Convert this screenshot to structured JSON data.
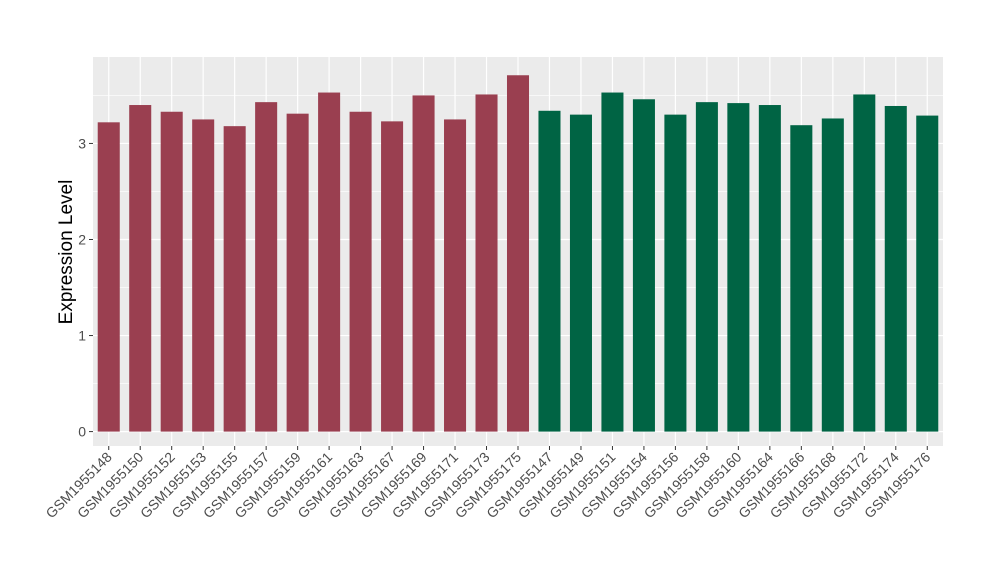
{
  "chart_data": {
    "type": "bar",
    "title": "",
    "xlabel": "",
    "ylabel": "Expression Level",
    "ylim": [
      -0.15,
      3.9
    ],
    "yticks": [
      0,
      1,
      2,
      3
    ],
    "grid": true,
    "legend": "none",
    "colors": {
      "group1": "#9A3F50",
      "group2": "#006444",
      "panel": "#EBEBEB",
      "grid": "#FFFFFF"
    },
    "categories": [
      "GSM1955148",
      "GSM1955150",
      "GSM1955152",
      "GSM1955153",
      "GSM1955155",
      "GSM1955157",
      "GSM1955159",
      "GSM1955161",
      "GSM1955163",
      "GSM1955167",
      "GSM1955169",
      "GSM1955171",
      "GSM1955173",
      "GSM1955175",
      "GSM1955147",
      "GSM1955149",
      "GSM1955151",
      "GSM1955154",
      "GSM1955156",
      "GSM1955158",
      "GSM1955160",
      "GSM1955164",
      "GSM1955166",
      "GSM1955168",
      "GSM1955172",
      "GSM1955174",
      "GSM1955176"
    ],
    "values": [
      3.22,
      3.4,
      3.33,
      3.25,
      3.18,
      3.43,
      3.31,
      3.53,
      3.33,
      3.23,
      3.5,
      3.25,
      3.51,
      3.71,
      3.34,
      3.3,
      3.53,
      3.46,
      3.3,
      3.43,
      3.42,
      3.4,
      3.19,
      3.26,
      3.51,
      3.39,
      3.29
    ],
    "groups": [
      1,
      1,
      1,
      1,
      1,
      1,
      1,
      1,
      1,
      1,
      1,
      1,
      1,
      1,
      2,
      2,
      2,
      2,
      2,
      2,
      2,
      2,
      2,
      2,
      2,
      2,
      2
    ]
  }
}
